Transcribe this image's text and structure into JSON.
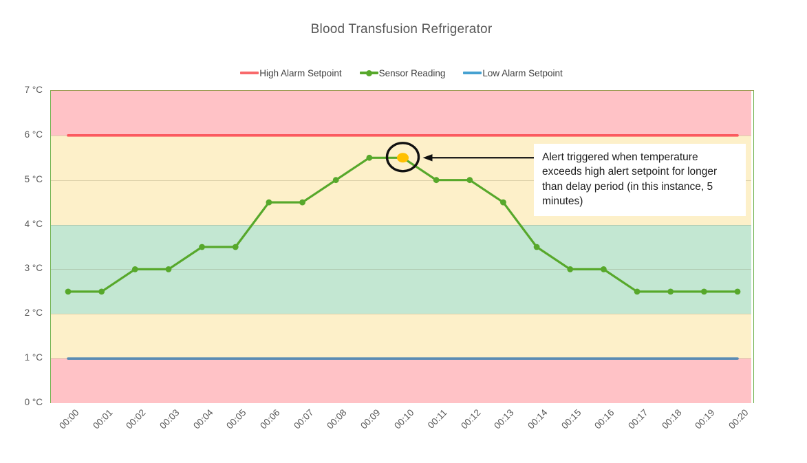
{
  "title": "Blood Transfusion Refrigerator",
  "legend": {
    "items": [
      {
        "label": "High Alarm Setpoint",
        "color": "#f8696b",
        "marker": false
      },
      {
        "label": "Sensor Reading",
        "color": "#57a82b",
        "marker": true
      },
      {
        "label": "Low Alarm Setpoint",
        "color": "#46a1d1",
        "marker": false
      }
    ]
  },
  "annotation": {
    "text": "Alert triggered when temperature exceeds high alert setpoint for longer than delay period (in this instance, 5 minutes)",
    "arrow_color": "#111111",
    "circle_color": "#111111"
  },
  "chart_data": {
    "type": "line",
    "title": "Blood Transfusion Refrigerator",
    "xlabel": "",
    "ylabel": "",
    "ylim": [
      0,
      7
    ],
    "grid": true,
    "legend_position": "top",
    "categories": [
      "00:00",
      "00:01",
      "00:02",
      "00:03",
      "00:04",
      "00:05",
      "00:06",
      "00:07",
      "00:08",
      "00:09",
      "00:10",
      "00:11",
      "00:12",
      "00:13",
      "00:14",
      "00:15",
      "00:16",
      "00:17",
      "00:18",
      "00:19",
      "00:20"
    ],
    "series": [
      {
        "name": "High Alarm Setpoint",
        "color": "#fb5a5f",
        "constant": 6
      },
      {
        "name": "Sensor Reading",
        "color": "#57a82b",
        "values": [
          2.5,
          2.5,
          3,
          3,
          3.5,
          3.5,
          4.5,
          4.5,
          5,
          5.5,
          5.5,
          5,
          5,
          4.5,
          3.5,
          3,
          3,
          2.5,
          2.5,
          2.5,
          2.5
        ]
      },
      {
        "name": "Low Alarm Setpoint",
        "color": "#5a8cb4",
        "constant": 1
      }
    ],
    "highlight": {
      "category": "00:10",
      "index": 10,
      "value": 5.5,
      "color": "#ffc000"
    },
    "y_ticks": [
      {
        "value": 7,
        "label": "7 °C"
      },
      {
        "value": 6,
        "label": "6 °C"
      },
      {
        "value": 5,
        "label": "5 °C"
      },
      {
        "value": 4,
        "label": "4 °C"
      },
      {
        "value": 3,
        "label": "3 °C"
      },
      {
        "value": 2,
        "label": "2 °C"
      },
      {
        "value": 1,
        "label": "1 °C"
      },
      {
        "value": 0,
        "label": "0 °C"
      }
    ],
    "bands": [
      {
        "from": 6,
        "to": 7,
        "color": "#ffc2c6",
        "zone": "alarm-high"
      },
      {
        "from": 4,
        "to": 6,
        "color": "#fdf0c9",
        "zone": "warning-high"
      },
      {
        "from": 2,
        "to": 4,
        "color": "#c3e7d2",
        "zone": "safe"
      },
      {
        "from": 1,
        "to": 2,
        "color": "#fdf0c9",
        "zone": "warning-low"
      },
      {
        "from": 0,
        "to": 1,
        "color": "#ffc2c6",
        "zone": "alarm-low"
      }
    ],
    "gridline_values": [
      1,
      2,
      3,
      4,
      5,
      6
    ]
  }
}
